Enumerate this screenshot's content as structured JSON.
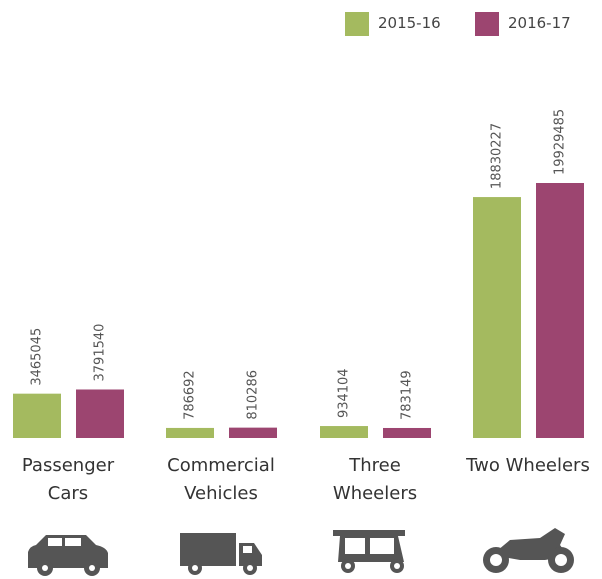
{
  "chart_data": {
    "type": "bar",
    "categories": [
      "Passenger Cars",
      "Commercial Vehicles",
      "Three Wheelers",
      "Two Wheelers"
    ],
    "series": [
      {
        "name": "2015-16",
        "color": "#a4ba5f",
        "values": [
          3465045,
          786692,
          934104,
          18830227
        ]
      },
      {
        "name": "2016-17",
        "color": "#9c4570",
        "values": [
          3791540,
          810286,
          783149,
          19929485
        ]
      }
    ],
    "legend": "top-right"
  }
}
